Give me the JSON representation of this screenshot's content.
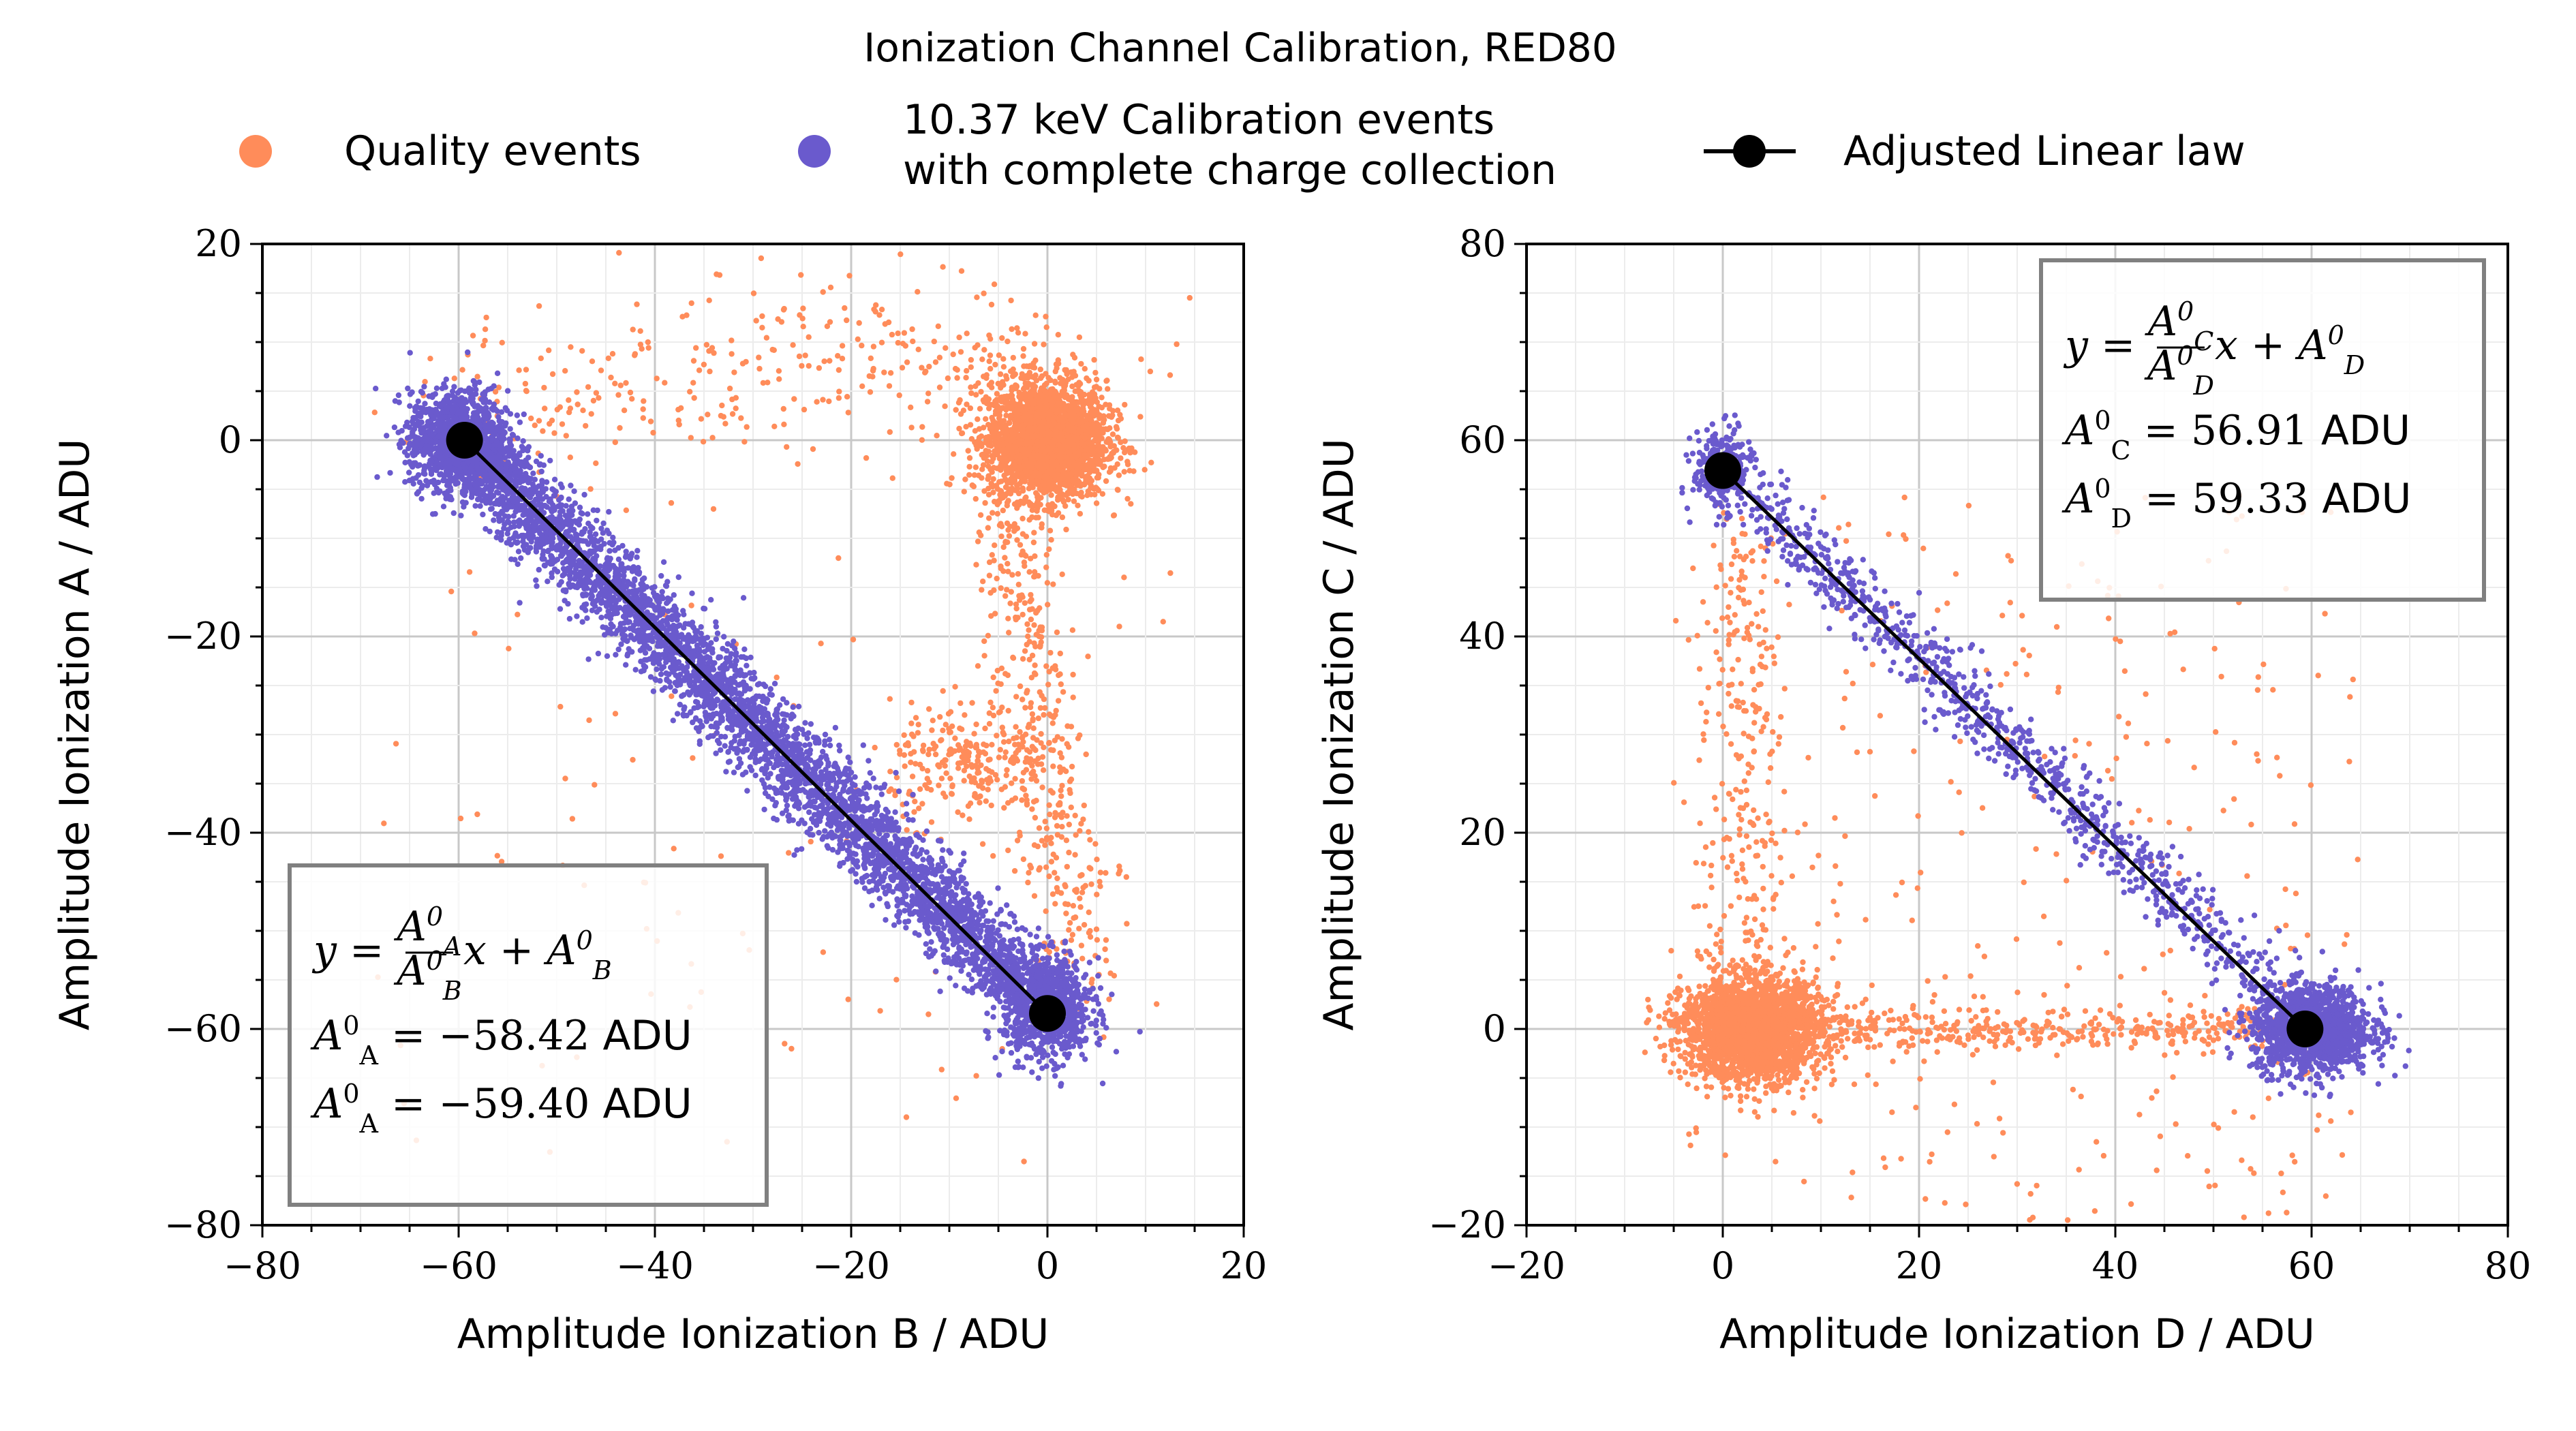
{
  "title": "Ionization Channel Calibration, RED80",
  "legend": {
    "quality_label": "Quality events",
    "calib_label_line1": "10.37 keV Calibration events",
    "calib_label_line2": "with complete charge collection",
    "linear_label": "Adjusted Linear law"
  },
  "colors": {
    "quality": "#ff8c5a",
    "calibration": "#6a5acd",
    "law": "#000000",
    "grid_major": "#c8c8c8",
    "grid_minor": "#ececec",
    "box_border": "#808080"
  },
  "chart_data": [
    {
      "type": "scatter",
      "xlabel": "Amplitude Ionization B / ADU",
      "ylabel": "Amplitude Ionization A / ADU",
      "xlim": [
        -80,
        20
      ],
      "ylim": [
        -80,
        20
      ],
      "xticks": [
        "−80",
        "−60",
        "−40",
        "−20",
        "0",
        "20"
      ],
      "yticks": [
        "−80",
        "−60",
        "−40",
        "−20",
        "0",
        "20"
      ],
      "grid": true,
      "series": [
        {
          "name": "Quality events",
          "clusters": [
            {
              "kind": "blob",
              "center": [
                0,
                0
              ],
              "spread": [
                3,
                3
              ],
              "count": 2600
            },
            {
              "kind": "blob",
              "center": [
                -8,
                -33
              ],
              "spread": [
                4,
                3
              ],
              "count": 250
            },
            {
              "kind": "arc",
              "from": [
                -60,
                0
              ],
              "peak": [
                -20,
                16
              ],
              "to": [
                0,
                4
              ],
              "count": 350
            },
            {
              "kind": "band",
              "from": [
                -5,
                -5
              ],
              "to": [
                4,
                -55
              ],
              "count": 400
            },
            {
              "kind": "scatter",
              "xrange": [
                -70,
                15
              ],
              "yrange": [
                -75,
                15
              ],
              "count": 120
            }
          ]
        },
        {
          "name": "10.37 keV Calibration events with complete charge collection",
          "clusters": [
            {
              "kind": "blob",
              "center": [
                -60,
                0
              ],
              "spread": [
                2.5,
                2.5
              ],
              "count": 1300
            },
            {
              "kind": "blob",
              "center": [
                0,
                -58
              ],
              "spread": [
                2.2,
                2.5
              ],
              "count": 900
            },
            {
              "kind": "band",
              "from": [
                -58,
                -2
              ],
              "to": [
                -2,
                -56
              ],
              "width": 2.8,
              "count": 4200
            }
          ]
        },
        {
          "name": "Adjusted Linear law",
          "points": [
            [
              -59.4,
              0
            ],
            [
              0,
              -58.42
            ]
          ]
        }
      ],
      "annotation": {
        "position": "bottom-left",
        "equation": "y = (A_A^0 / A_B^0) x + A_B^0",
        "line1_lhs": "A_A^0 = −58.42",
        "line1_unit": "ADU",
        "line2_lhs": "A_A^0 = −59.40",
        "line2_unit": "ADU"
      }
    },
    {
      "type": "scatter",
      "xlabel": "Amplitude Ionization D / ADU",
      "ylabel": "Amplitude Ionization C / ADU",
      "xlim": [
        -20,
        80
      ],
      "ylim": [
        -20,
        80
      ],
      "xticks": [
        "−20",
        "0",
        "20",
        "40",
        "60",
        "80"
      ],
      "yticks": [
        "−20",
        "0",
        "20",
        "40",
        "60",
        "80"
      ],
      "grid": true,
      "series": [
        {
          "name": "Quality events",
          "clusters": [
            {
              "kind": "blob",
              "center": [
                3,
                0
              ],
              "spread": [
                3.5,
                2.5
              ],
              "count": 2600
            },
            {
              "kind": "band",
              "from": [
                10,
                0
              ],
              "to": [
                55,
                0
              ],
              "width": 1.5,
              "count": 350
            },
            {
              "kind": "band",
              "from": [
                2,
                50
              ],
              "to": [
                2,
                5
              ],
              "width": 3,
              "count": 250
            },
            {
              "kind": "scatter",
              "xrange": [
                -5,
                65
              ],
              "yrange": [
                -20,
                55
              ],
              "count": 350
            }
          ]
        },
        {
          "name": "10.37 keV Calibration events with complete charge collection",
          "clusters": [
            {
              "kind": "blob",
              "center": [
                60,
                0
              ],
              "spread": [
                3,
                2.2
              ],
              "count": 1400
            },
            {
              "kind": "blob",
              "center": [
                0,
                57
              ],
              "spread": [
                1.5,
                2
              ],
              "count": 300
            },
            {
              "kind": "band",
              "from": [
                2,
                55
              ],
              "to": [
                57,
                3
              ],
              "width": 2.2,
              "count": 900
            }
          ]
        },
        {
          "name": "Adjusted Linear law",
          "points": [
            [
              0,
              56.91
            ],
            [
              59.33,
              0
            ]
          ]
        }
      ],
      "annotation": {
        "position": "top-right",
        "equation": "y = (A_C^0 / A_D^0) x + A_D^0",
        "line1_lhs": "A_C^0 = 56.91",
        "line1_unit": "ADU",
        "line2_lhs": "A_D^0 = 59.33",
        "line2_unit": "ADU"
      }
    }
  ]
}
